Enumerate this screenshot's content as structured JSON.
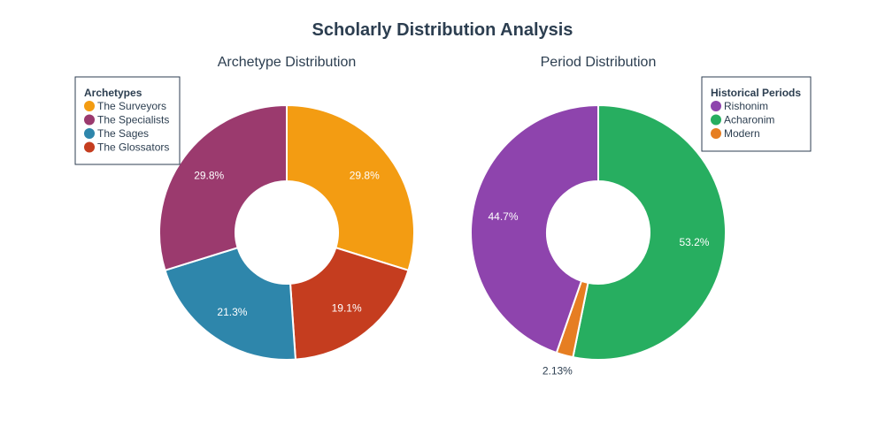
{
  "title": "Scholarly Distribution Analysis",
  "chart_data": [
    {
      "type": "pie",
      "hole": true,
      "title": "Archetype Distribution",
      "legend_title": "Archetypes",
      "legend_position": "top-left",
      "labels": [
        "The Surveyors",
        "The Specialists",
        "The Sages",
        "The Glossators"
      ],
      "values": [
        29.8,
        29.8,
        21.3,
        19.1
      ],
      "slice_labels": [
        "29.8%",
        "29.8%",
        "21.3%",
        "19.1%"
      ],
      "colors": [
        "#f39c12",
        "#9b3a6e",
        "#2e86ab",
        "#c53d1f"
      ],
      "slice_order": [
        0,
        3,
        2,
        1
      ]
    },
    {
      "type": "pie",
      "hole": true,
      "title": "Period Distribution",
      "legend_title": "Historical Periods",
      "legend_position": "top-right",
      "labels": [
        "Rishonim",
        "Acharonim",
        "Modern"
      ],
      "values": [
        44.7,
        53.2,
        2.13
      ],
      "slice_labels": [
        "44.7%",
        "53.2%",
        "2.13%"
      ],
      "colors": [
        "#8e44ad",
        "#27ae60",
        "#e67e22"
      ],
      "slice_order": [
        1,
        2,
        0
      ]
    }
  ]
}
